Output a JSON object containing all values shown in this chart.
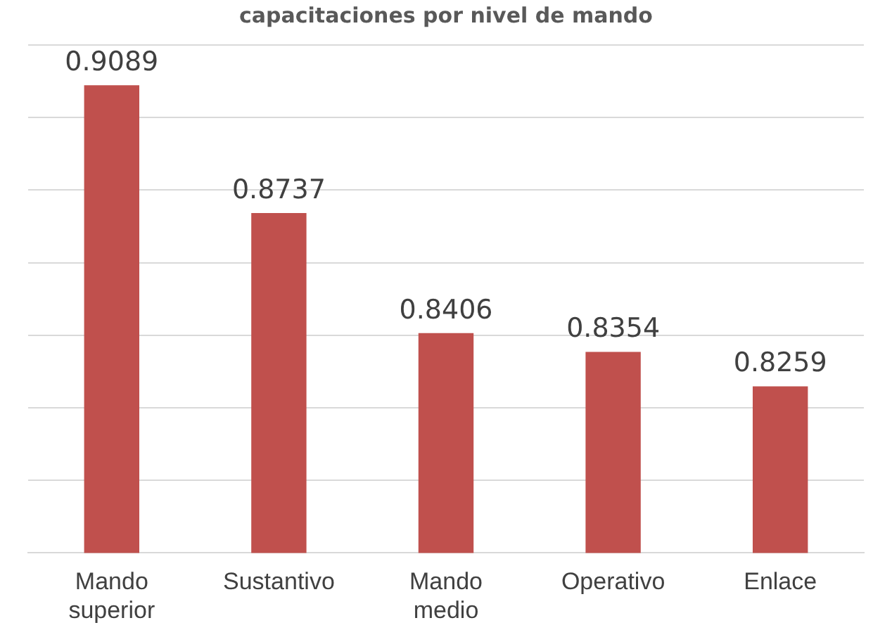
{
  "chart_data": {
    "type": "bar",
    "title": "capacitaciones por nivel de mando",
    "categories": [
      "Mando superior",
      "Sustantivo",
      "Mando medio",
      "Operativo",
      "Enlace"
    ],
    "values": [
      0.9089,
      0.8737,
      0.8406,
      0.8354,
      0.8259
    ],
    "color": "#c0504d",
    "ylim": [
      0.78,
      0.92
    ],
    "yticks": [
      0.78,
      0.8,
      0.82,
      0.84,
      0.86,
      0.88,
      0.9,
      0.92
    ],
    "grid": "y",
    "tick_labels": "x",
    "data_labels": true
  }
}
